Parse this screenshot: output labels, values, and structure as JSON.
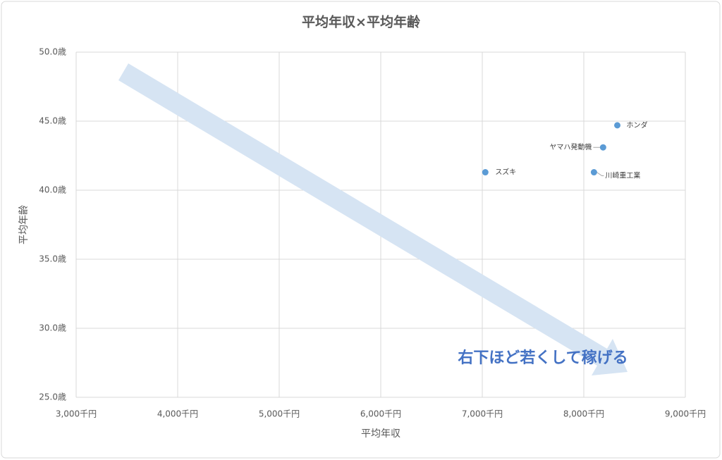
{
  "chart_data": {
    "type": "scatter",
    "title": "平均年収×平均年齢",
    "x_label": "平均年収",
    "y_label": "平均年齢",
    "annotation": "右下ほど若くして稼げる",
    "color": "#5b9bd5",
    "grid": true,
    "point_labels": [
      "スズキ",
      "ホンダ",
      "ヤマハ発動機",
      "川崎重工業"
    ],
    "x": [
      7030,
      8330,
      8190,
      8100
    ],
    "values": [
      41.3,
      44.7,
      43.1,
      41.3
    ],
    "xlim": [
      3000,
      9000
    ],
    "xticks": [
      {
        "value": 3000,
        "label": "3,000千円"
      },
      {
        "value": 4000,
        "label": "4,000千円"
      },
      {
        "value": 5000,
        "label": "5,000千円"
      },
      {
        "value": 6000,
        "label": "6,000千円"
      },
      {
        "value": 7000,
        "label": "7,000千円"
      },
      {
        "value": 8000,
        "label": "8,000千円"
      },
      {
        "value": 9000,
        "label": "9,000千円"
      }
    ],
    "ylim": [
      25,
      50
    ],
    "yticks": [
      {
        "value": 25,
        "label": "25.0歳"
      },
      {
        "value": 30,
        "label": "30.0歳"
      },
      {
        "value": 35,
        "label": "35.0歳"
      },
      {
        "value": 40,
        "label": "40.0歳"
      },
      {
        "value": 45,
        "label": "45.0歳"
      },
      {
        "value": 50,
        "label": "50.0歳"
      }
    ]
  }
}
